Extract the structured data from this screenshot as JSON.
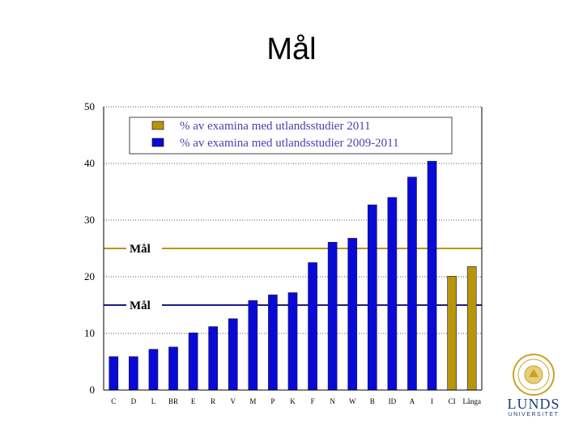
{
  "slide": {
    "title": "Mål"
  },
  "logo": {
    "name": "lund-university-seal-icon",
    "word": "LUNDS",
    "sub": "UNIVERSITET"
  },
  "chart_data": {
    "type": "bar",
    "title": "",
    "xlabel": "",
    "ylabel": "",
    "ylim": [
      0,
      50
    ],
    "yticks": [
      0,
      10,
      20,
      30,
      40,
      50
    ],
    "grid": "horizontal dotted",
    "legend_position": "top-left",
    "categories": [
      "C",
      "D",
      "L",
      "BR",
      "E",
      "R",
      "V",
      "M",
      "P",
      "K",
      "F",
      "N",
      "W",
      "B",
      "ID",
      "A",
      "I",
      "CI",
      "Långa"
    ],
    "series": [
      {
        "name": "% av examina med utlandsstudier 2011",
        "color": "#b8960c",
        "values": [
          null,
          null,
          null,
          null,
          null,
          null,
          null,
          null,
          null,
          null,
          null,
          null,
          null,
          null,
          null,
          null,
          null,
          20.1,
          21.8
        ]
      },
      {
        "name": "% av examina med utlandsstudier 2009-2011",
        "color": "#0a0ad6",
        "values": [
          5.9,
          5.9,
          7.2,
          7.6,
          10.1,
          11.2,
          12.6,
          15.8,
          16.8,
          17.2,
          22.5,
          26.1,
          26.8,
          32.7,
          34.0,
          37.6,
          40.4,
          null,
          null
        ]
      }
    ],
    "reference_lines": [
      {
        "label": "Mål",
        "value": 25,
        "color": "#b8960c"
      },
      {
        "label": "Mål",
        "value": 15,
        "color": "#1a1a8c"
      }
    ]
  }
}
